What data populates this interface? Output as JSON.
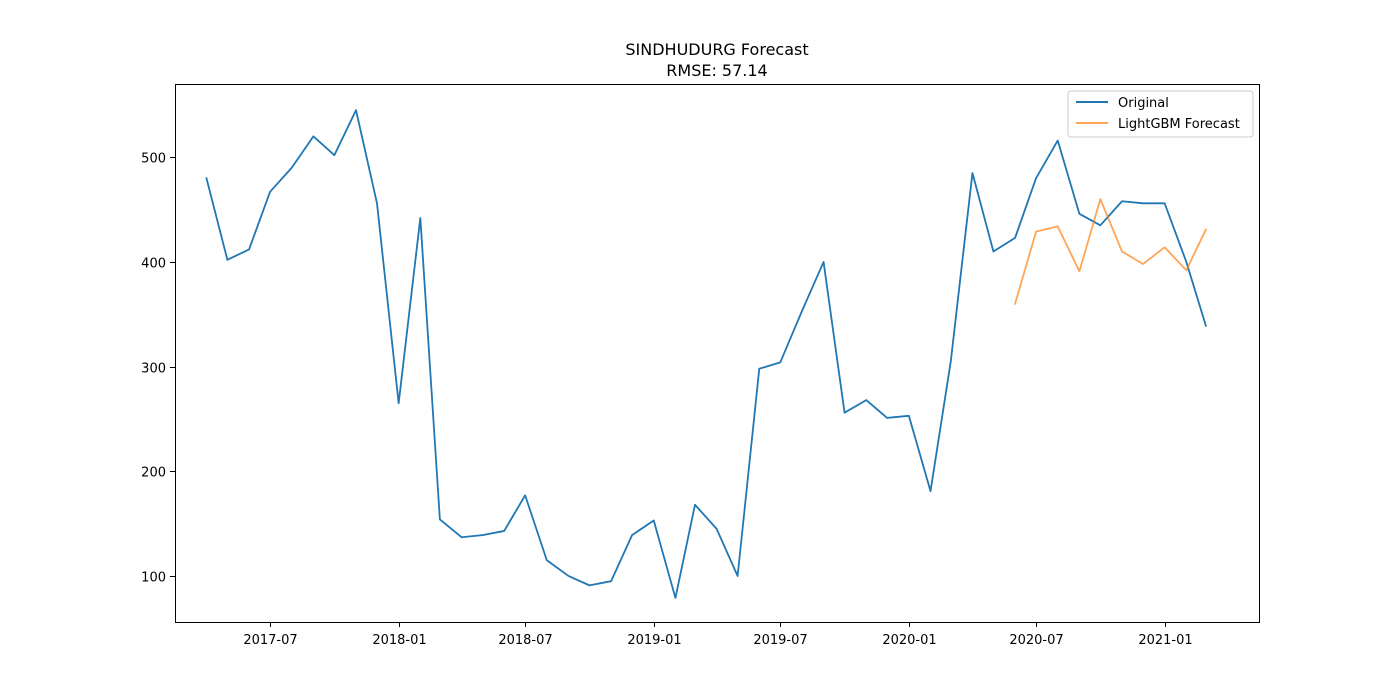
{
  "chart_data": {
    "type": "line",
    "title": "SINDHUDURG Forecast",
    "subtitle": "RMSE: 57.14",
    "xlabel": "",
    "ylabel": "",
    "x_axis_type": "date",
    "xlim": [
      "2017-02-15",
      "2021-05-16"
    ],
    "ylim": [
      56,
      570
    ],
    "x_ticks": [
      "2017-07",
      "2018-01",
      "2018-07",
      "2019-01",
      "2019-07",
      "2020-01",
      "2020-07",
      "2021-01"
    ],
    "y_ticks": [
      100,
      200,
      300,
      400,
      500
    ],
    "grid": false,
    "legend_position": "top-right",
    "series": [
      {
        "name": "Original",
        "color": "#1f77b4",
        "x": [
          "2017-04",
          "2017-05",
          "2017-06",
          "2017-07",
          "2017-08",
          "2017-09",
          "2017-10",
          "2017-11",
          "2017-12",
          "2018-01",
          "2018-02",
          "2018-03",
          "2018-04",
          "2018-05",
          "2018-06",
          "2018-07",
          "2018-08",
          "2018-09",
          "2018-10",
          "2018-11",
          "2018-12",
          "2019-01",
          "2019-02",
          "2019-03",
          "2019-04",
          "2019-05",
          "2019-06",
          "2019-07",
          "2019-08",
          "2019-09",
          "2019-10",
          "2019-11",
          "2019-12",
          "2020-01",
          "2020-02",
          "2020-03",
          "2020-04",
          "2020-05",
          "2020-06",
          "2020-07",
          "2020-08",
          "2020-09",
          "2020-10",
          "2020-11",
          "2020-12",
          "2021-01",
          "2021-02",
          "2021-03"
        ],
        "y": [
          480,
          402,
          412,
          467,
          490,
          520,
          502,
          545,
          456,
          265,
          442,
          154,
          137,
          139,
          143,
          177,
          115,
          100,
          91,
          95,
          139,
          153,
          79,
          168,
          145,
          100,
          298,
          304,
          353,
          400,
          256,
          268,
          251,
          253,
          181,
          305,
          485,
          410,
          423,
          480,
          516,
          446,
          435,
          458,
          456,
          456,
          400,
          339
        ]
      },
      {
        "name": "LightGBM Forecast",
        "color": "#ff7f0e",
        "x": [
          "2020-06",
          "2020-07",
          "2020-08",
          "2020-09",
          "2020-10",
          "2020-11",
          "2020-12",
          "2021-01",
          "2021-02",
          "2021-03"
        ],
        "y": [
          360,
          429,
          434,
          391,
          460,
          410,
          398,
          414,
          392,
          431
        ]
      }
    ]
  }
}
